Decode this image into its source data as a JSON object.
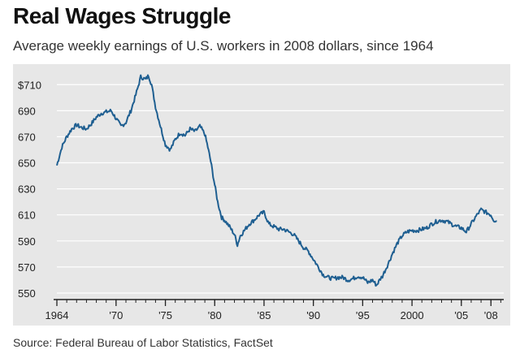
{
  "header": {
    "title": "Real Wages Struggle",
    "subtitle": "Average weekly earnings of U.S. workers in 2008 dollars, since 1964"
  },
  "footer": {
    "source": "Source: Federal Bureau of Labor Statistics, FactSet"
  },
  "colors": {
    "line": "#1f5f91",
    "panel": "#e7e7e7",
    "grid": "#ffffff",
    "axis": "#222222"
  },
  "chart_data": {
    "type": "line",
    "title": "Real Wages Struggle",
    "subtitle": "Average weekly earnings of U.S. workers in 2008 dollars, since 1964",
    "xlabel": "",
    "ylabel": "",
    "xlim": [
      1964,
      2009.3
    ],
    "ylim": [
      545,
      722
    ],
    "yticks": [
      550,
      570,
      590,
      610,
      630,
      650,
      670,
      690,
      710
    ],
    "ytick_labels": [
      "550",
      "570",
      "590",
      "610",
      "630",
      "650",
      "670",
      "690",
      "$710"
    ],
    "xticks": [
      1964,
      1970,
      1975,
      1980,
      1985,
      1990,
      1995,
      2000,
      2005,
      2008
    ],
    "xtick_labels": [
      "1964",
      "'70",
      "'75",
      "'80",
      "'85",
      "'90",
      "'95",
      "2000",
      "'05",
      "'08"
    ],
    "grid": true,
    "series": [
      {
        "values": [
          [
            1964.0,
            648
          ],
          [
            1964.5,
            662
          ],
          [
            1965.0,
            670
          ],
          [
            1965.5,
            676
          ],
          [
            1966.0,
            679
          ],
          [
            1966.5,
            677
          ],
          [
            1967.0,
            676
          ],
          [
            1967.5,
            680
          ],
          [
            1968.0,
            685
          ],
          [
            1968.5,
            688
          ],
          [
            1969.0,
            689
          ],
          [
            1969.5,
            690
          ],
          [
            1970.0,
            684
          ],
          [
            1970.5,
            678
          ],
          [
            1971.0,
            681
          ],
          [
            1971.5,
            690
          ],
          [
            1972.0,
            702
          ],
          [
            1972.5,
            716
          ],
          [
            1973.0,
            714
          ],
          [
            1973.3,
            717
          ],
          [
            1973.6,
            710
          ],
          [
            1974.0,
            693
          ],
          [
            1974.5,
            678
          ],
          [
            1975.0,
            664
          ],
          [
            1975.5,
            660
          ],
          [
            1976.0,
            668
          ],
          [
            1976.5,
            673
          ],
          [
            1977.0,
            671
          ],
          [
            1977.5,
            676
          ],
          [
            1978.0,
            674
          ],
          [
            1978.5,
            678
          ],
          [
            1979.0,
            672
          ],
          [
            1979.3,
            662
          ],
          [
            1979.6,
            651
          ],
          [
            1980.0,
            633
          ],
          [
            1980.3,
            620
          ],
          [
            1980.7,
            608
          ],
          [
            1981.0,
            606
          ],
          [
            1981.5,
            601
          ],
          [
            1982.0,
            595
          ],
          [
            1982.3,
            587
          ],
          [
            1982.6,
            594
          ],
          [
            1983.0,
            598
          ],
          [
            1983.5,
            603
          ],
          [
            1984.0,
            606
          ],
          [
            1984.5,
            610
          ],
          [
            1985.0,
            612
          ],
          [
            1985.5,
            603
          ],
          [
            1986.0,
            601
          ],
          [
            1986.5,
            599
          ],
          [
            1987.0,
            599
          ],
          [
            1987.5,
            597
          ],
          [
            1988.0,
            595
          ],
          [
            1988.5,
            590
          ],
          [
            1989.0,
            585
          ],
          [
            1989.5,
            582
          ],
          [
            1990.0,
            576
          ],
          [
            1990.5,
            570
          ],
          [
            1991.0,
            564
          ],
          [
            1991.5,
            562
          ],
          [
            1992.0,
            561
          ],
          [
            1992.5,
            562
          ],
          [
            1993.0,
            562
          ],
          [
            1993.5,
            560
          ],
          [
            1994.0,
            561
          ],
          [
            1994.5,
            563
          ],
          [
            1995.0,
            562
          ],
          [
            1995.5,
            558
          ],
          [
            1996.0,
            560
          ],
          [
            1996.4,
            556
          ],
          [
            1996.8,
            561
          ],
          [
            1997.0,
            563
          ],
          [
            1997.5,
            571
          ],
          [
            1998.0,
            580
          ],
          [
            1998.5,
            588
          ],
          [
            1999.0,
            594
          ],
          [
            1999.5,
            597
          ],
          [
            2000.0,
            598
          ],
          [
            2000.5,
            598
          ],
          [
            2001.0,
            599
          ],
          [
            2001.5,
            600
          ],
          [
            2002.0,
            603
          ],
          [
            2002.5,
            605
          ],
          [
            2003.0,
            606
          ],
          [
            2003.5,
            605
          ],
          [
            2004.0,
            603
          ],
          [
            2004.5,
            601
          ],
          [
            2005.0,
            600
          ],
          [
            2005.5,
            597
          ],
          [
            2006.0,
            603
          ],
          [
            2006.5,
            609
          ],
          [
            2007.0,
            614
          ],
          [
            2007.5,
            612
          ],
          [
            2008.0,
            610
          ],
          [
            2008.3,
            606
          ],
          [
            2008.6,
            605
          ]
        ]
      }
    ]
  }
}
